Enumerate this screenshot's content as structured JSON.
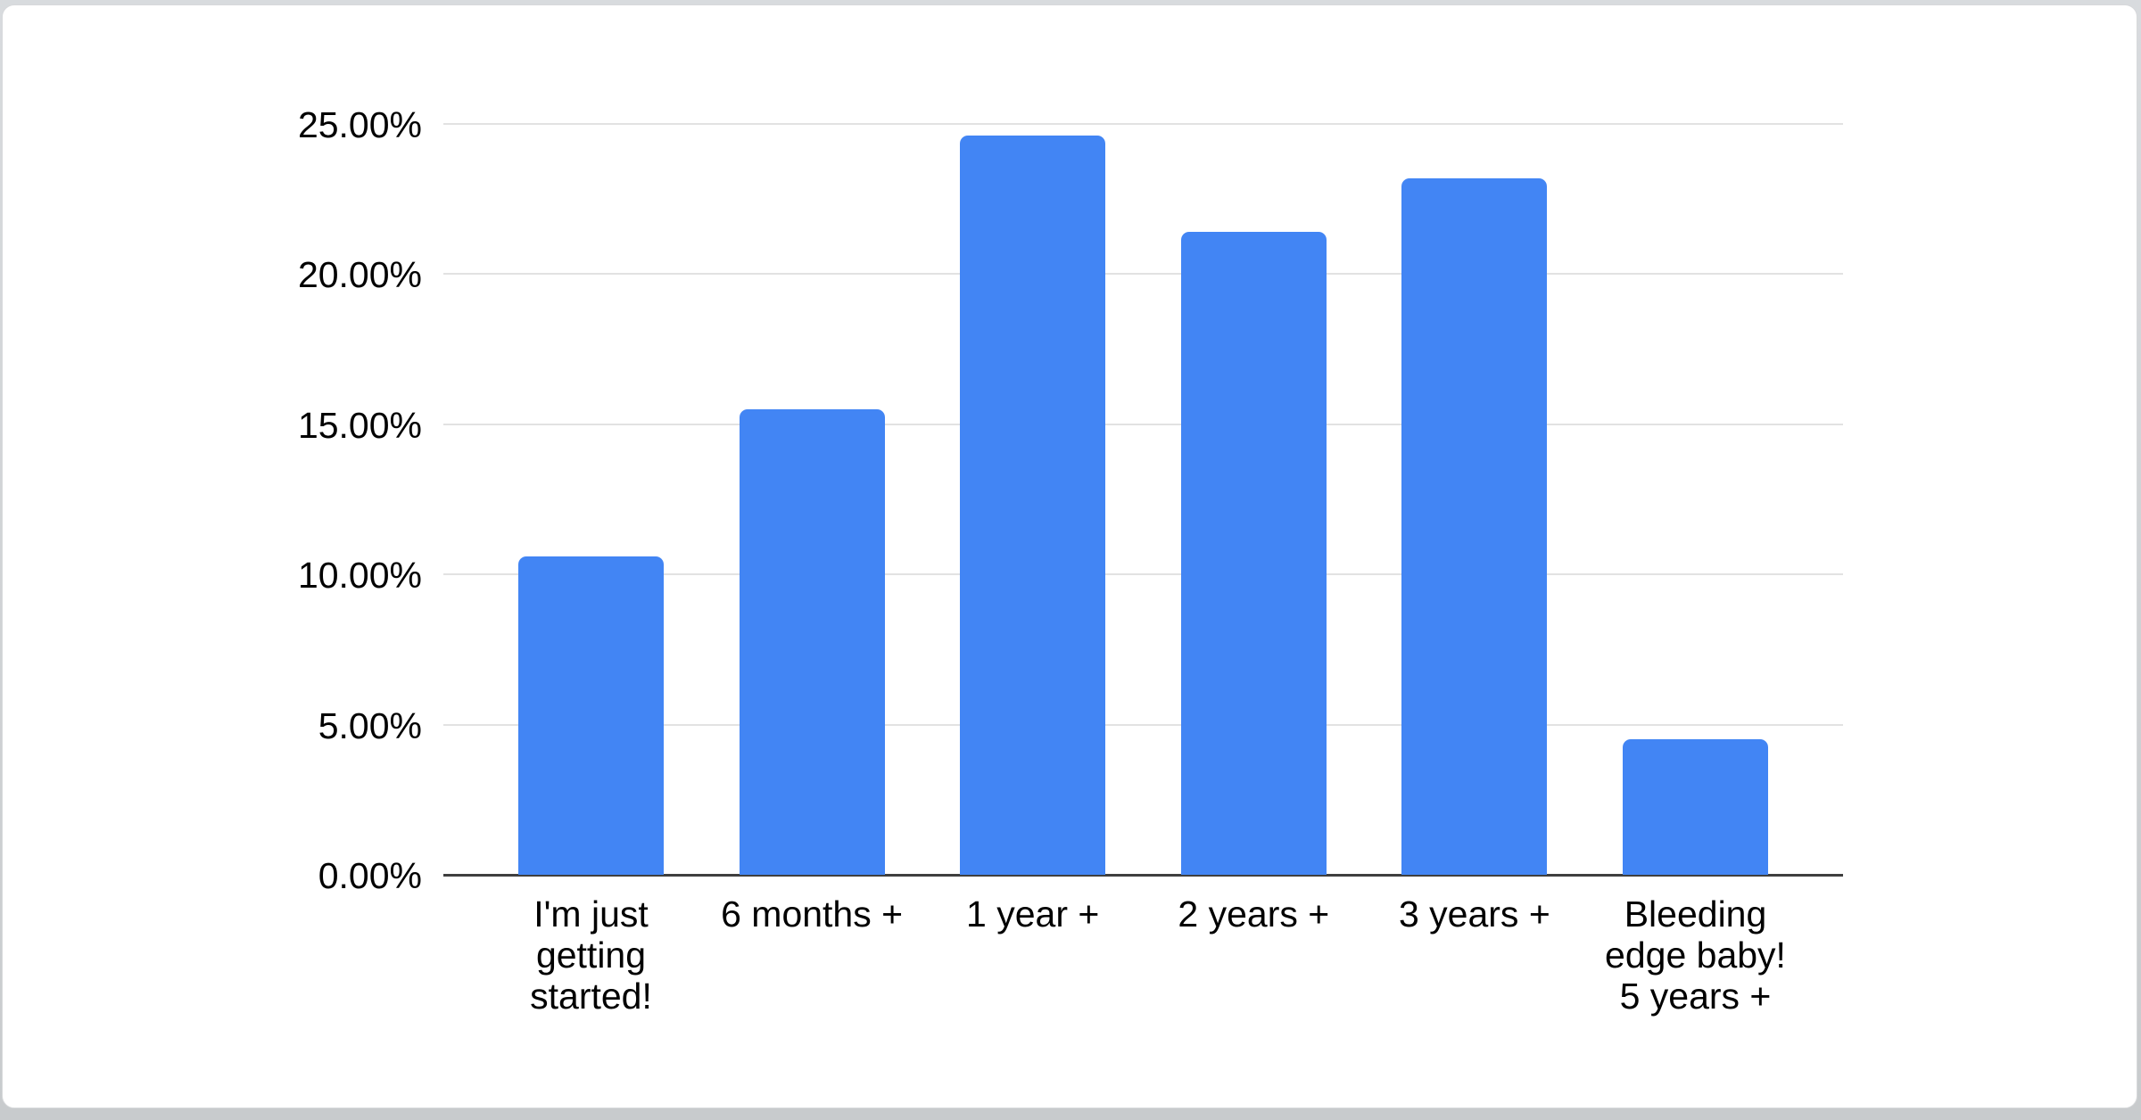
{
  "page": {
    "background_top": "#d8dbde",
    "background_bottom": "#c8cbcd",
    "card_background": "#ffffff",
    "card_border": "#d7d9db"
  },
  "chart_data": {
    "type": "bar",
    "title": "",
    "xlabel": "",
    "ylabel": "",
    "categories": [
      "I'm just\ngetting\nstarted!",
      "6 months +",
      "1 year +",
      "2 years +",
      "3 years +",
      "Bleeding\nedge baby!\n5 years +"
    ],
    "values": [
      10.6,
      15.5,
      24.6,
      21.4,
      23.2,
      4.5
    ],
    "value_unit": "%",
    "ylim": [
      0,
      25
    ],
    "ytick_step": 5,
    "ytick_labels": [
      "0.00%",
      "5.00%",
      "10.00%",
      "15.00%",
      "20.00%",
      "25.00%"
    ],
    "grid": true,
    "legend_position": "none",
    "bar_color": "#4285f4",
    "gridline_color": "#e2e2e2",
    "baseline_color": "#3f3f3f",
    "text_color": "#000000"
  }
}
